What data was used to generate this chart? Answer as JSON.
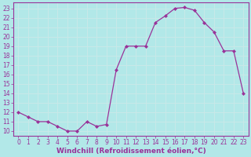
{
  "x": [
    0,
    1,
    2,
    3,
    4,
    5,
    6,
    7,
    8,
    9,
    10,
    11,
    12,
    13,
    14,
    15,
    16,
    17,
    18,
    19,
    20,
    21,
    22,
    23
  ],
  "y": [
    12,
    11.5,
    11,
    11,
    10.5,
    10,
    10,
    11,
    10.5,
    10.7,
    16.5,
    19,
    19,
    19,
    21.5,
    22.2,
    23,
    23.1,
    22.8,
    21.5,
    20.5,
    18.5,
    18.5,
    14
  ],
  "line_color": "#993399",
  "marker_color": "#993399",
  "bg_color": "#b2e8e8",
  "grid_color": "#c8e8e8",
  "xlabel": "Windchill (Refroidissement éolien,°C)",
  "ylim_min": 9.5,
  "ylim_max": 23.6,
  "xlim_min": -0.5,
  "xlim_max": 23.5,
  "yticks": [
    10,
    11,
    12,
    13,
    14,
    15,
    16,
    17,
    18,
    19,
    20,
    21,
    22,
    23
  ],
  "xticks": [
    0,
    1,
    2,
    3,
    4,
    5,
    6,
    7,
    8,
    9,
    10,
    11,
    12,
    13,
    14,
    15,
    16,
    17,
    18,
    19,
    20,
    21,
    22,
    23
  ],
  "tick_color": "#993399",
  "label_color": "#993399",
  "tick_fontsize": 5.5,
  "xlabel_fontsize": 6.5
}
